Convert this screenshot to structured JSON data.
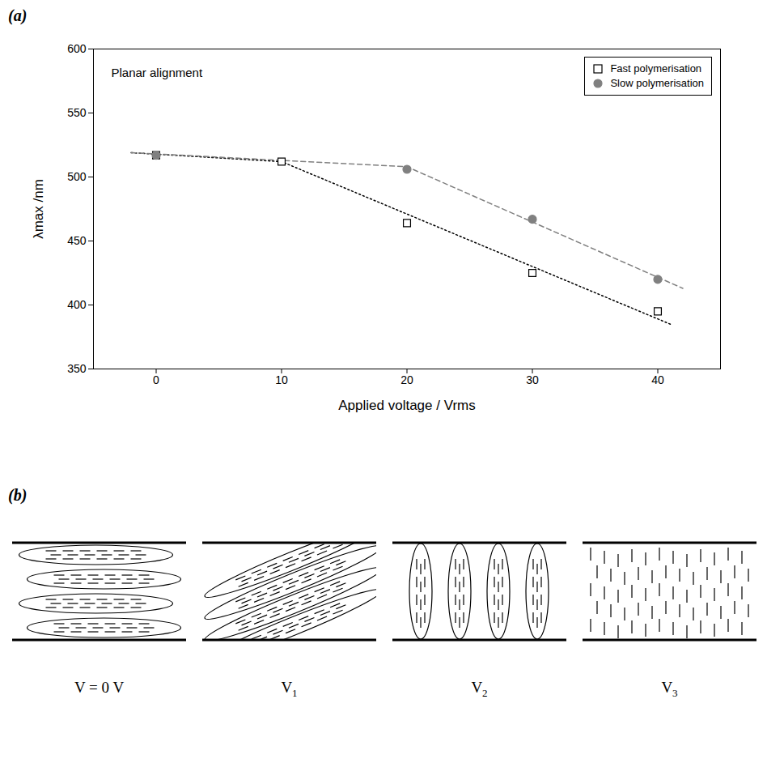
{
  "chart_data": {
    "type": "scatter",
    "panel": "(a)",
    "annotation": "Planar alignment",
    "x_label": "Applied voltage / Vrms",
    "y_label": "λmax /nm",
    "xlim": [
      -5,
      45
    ],
    "xticks": [
      0,
      10,
      20,
      30,
      40
    ],
    "ylim": [
      350,
      600
    ],
    "yticks": [
      350,
      400,
      450,
      500,
      550,
      600
    ],
    "grid": false,
    "legend": "top-right",
    "series": [
      {
        "name": "Fast polymerisation",
        "color": "#000000",
        "marker": "open_square",
        "line_style": "dotted",
        "x": [
          0,
          10,
          20,
          30,
          40
        ],
        "values": [
          517,
          512,
          464,
          425,
          395
        ],
        "fit": {
          "x": [
            -2,
            10,
            41
          ],
          "values": [
            519,
            512,
            385
          ]
        }
      },
      {
        "name": "Slow polymerisation",
        "color": "#808080",
        "marker": "filled_circle",
        "line_style": "dashed",
        "x": [
          0,
          20,
          30,
          40
        ],
        "values": [
          517,
          506,
          467,
          420
        ],
        "fit": {
          "x": [
            -2,
            20,
            42
          ],
          "values": [
            519,
            508,
            413
          ]
        }
      }
    ]
  },
  "diagram": {
    "panel": "(b)",
    "states": [
      {
        "label": {
          "main": "V = 0 V"
        }
      },
      {
        "label": {
          "main": "V",
          "sub": "1"
        }
      },
      {
        "label": {
          "main": "V",
          "sub": "2"
        }
      },
      {
        "label": {
          "main": "V",
          "sub": "3"
        }
      }
    ]
  }
}
